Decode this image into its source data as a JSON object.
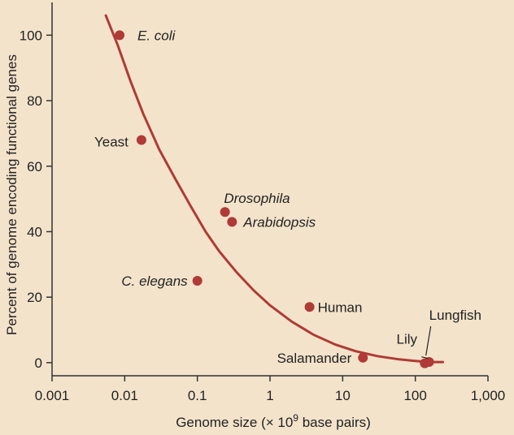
{
  "chart_data": {
    "type": "scatter",
    "title": "",
    "xlabel": "Genome size (× 10",
    "xlabel_sup": "9",
    "xlabel_suffix": " base pairs)",
    "ylabel": "Percent of genome encoding functional genes",
    "xscale": "log",
    "xlim": [
      0.001,
      1000
    ],
    "ylim": [
      -4,
      110
    ],
    "x_ticks": [
      0.001,
      0.01,
      0.1,
      1,
      10,
      100,
      1000
    ],
    "x_tick_labels": [
      "0.001",
      "0.01",
      "0.1",
      "1",
      "10",
      "100",
      "1,000"
    ],
    "y_ticks": [
      0,
      20,
      40,
      60,
      80,
      100
    ],
    "y_tick_labels": [
      "0",
      "20",
      "40",
      "60",
      "80",
      "100"
    ],
    "grid": false,
    "background_color": "#f3e3cb",
    "marker_color": "#b03a36",
    "curve_color": "#b03a36",
    "points": [
      {
        "name": "E. coli",
        "x": 0.0085,
        "y": 100,
        "italic": true
      },
      {
        "name": "Yeast",
        "x": 0.017,
        "y": 68,
        "italic": false
      },
      {
        "name": "Drosophila",
        "x": 0.24,
        "y": 46,
        "italic": true
      },
      {
        "name": "Arabidopsis",
        "x": 0.3,
        "y": 43,
        "italic": true
      },
      {
        "name": "C. elegans",
        "x": 0.1,
        "y": 25,
        "italic": true
      },
      {
        "name": "Human",
        "x": 3.5,
        "y": 17,
        "italic": false
      },
      {
        "name": "Salamander",
        "x": 19,
        "y": 1.5,
        "italic": false
      },
      {
        "name": "Lily",
        "x": 135,
        "y": -0.2,
        "italic": false
      },
      {
        "name": "Lungfish",
        "x": 155,
        "y": 0.2,
        "italic": false
      }
    ],
    "trend_curve": {
      "x": [
        0.0055,
        0.008,
        0.012,
        0.018,
        0.03,
        0.05,
        0.08,
        0.13,
        0.2,
        0.35,
        0.6,
        1,
        2,
        4,
        8,
        15,
        30,
        60,
        100,
        140,
        180,
        240
      ],
      "y": [
        106,
        97,
        86,
        76,
        65,
        56,
        48,
        40,
        34,
        27.5,
        22,
        17.5,
        12.5,
        8.5,
        5.5,
        3.5,
        2,
        1,
        0.5,
        0.25,
        0.2,
        0.2
      ]
    }
  }
}
